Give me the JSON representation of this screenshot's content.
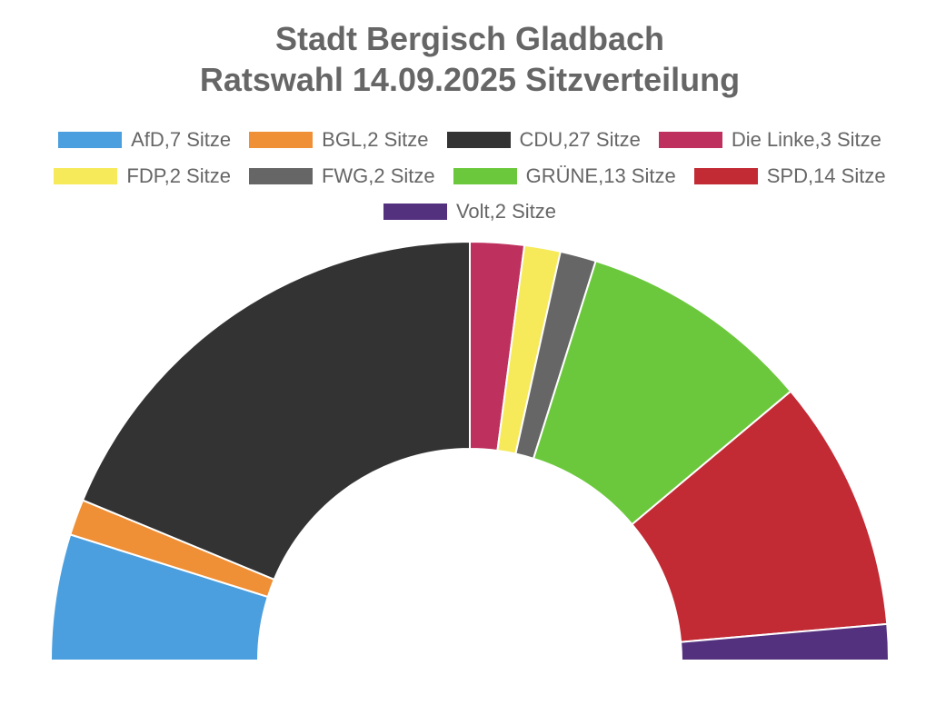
{
  "chart_data": {
    "type": "pie",
    "title": [
      "Stadt Bergisch Gladbach",
      "Ratswahl 14.09.2025 Sitzverteilung"
    ],
    "labels": [
      "AfD,7 Sitze",
      "BGL,2 Sitze",
      "CDU,27 Sitze",
      "Die Linke,3 Sitze",
      "FDP,2 Sitze",
      "FWG,2 Sitze",
      "GRÜNE,13 Sitze",
      "SPD,14 Sitze",
      "Volt,2 Sitze"
    ],
    "values": [
      7,
      2,
      27,
      3,
      2,
      2,
      13,
      14,
      2
    ],
    "colors": [
      "#4b9fde",
      "#ef8f36",
      "#333333",
      "#be305e",
      "#f6ea5a",
      "#666666",
      "#6bc83c",
      "#c22a34",
      "#53317f"
    ],
    "text_color": "#666666",
    "legend": "top"
  }
}
